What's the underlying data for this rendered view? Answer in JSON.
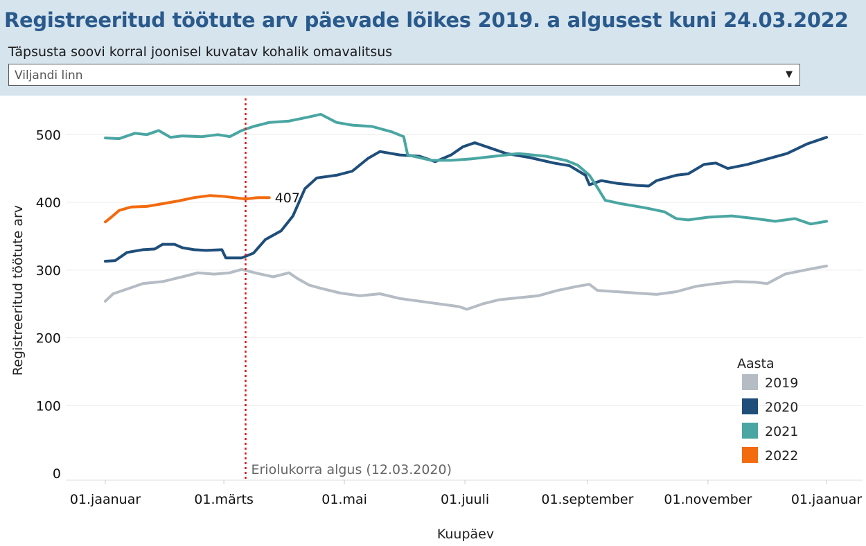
{
  "header": {
    "title": "Registreeritud töötute arv päevade lõikes 2019. a algusest kuni 24.03.2022",
    "filter_label": "Täpsusta soovi korral  joonisel kuvatav kohalik omavalitsus",
    "filter_value": "Viljandi linn",
    "filter_arrow_icon": "caret-down-icon"
  },
  "chart_data": {
    "type": "line",
    "title": "",
    "xlabel": "Kuupäev",
    "ylabel": "Registreeritud töötute arv",
    "ylim": [
      0,
      560
    ],
    "yticks": [
      0,
      100,
      200,
      300,
      400,
      500
    ],
    "x_is_day_of_year": true,
    "xlim": [
      1,
      366
    ],
    "x_ticks": [
      {
        "label": "01.jaanuar",
        "day": 1
      },
      {
        "label": "01.märts",
        "day": 61
      },
      {
        "label": "01.mai",
        "day": 122
      },
      {
        "label": "01.juuli",
        "day": 183
      },
      {
        "label": "01.september",
        "day": 245
      },
      {
        "label": "01.november",
        "day": 306
      },
      {
        "label": "01.jaanuar",
        "day": 366
      }
    ],
    "grid": "horizontal",
    "legend": {
      "title": "Aasta",
      "position": "bottom-right"
    },
    "annotations": {
      "vline": {
        "day": 72,
        "label": "Eriolukorra algus (12.03.2020)",
        "color": "#e0151a"
      },
      "end_label": {
        "series": "2022",
        "day": 84,
        "value": 407,
        "text": "407"
      }
    },
    "series": [
      {
        "name": "2019",
        "color": "#b5bcc4",
        "points": [
          [
            1,
            254
          ],
          [
            5,
            265
          ],
          [
            12,
            272
          ],
          [
            20,
            280
          ],
          [
            30,
            283
          ],
          [
            40,
            290
          ],
          [
            48,
            296
          ],
          [
            56,
            294
          ],
          [
            64,
            296
          ],
          [
            70,
            301
          ],
          [
            78,
            295
          ],
          [
            86,
            290
          ],
          [
            94,
            296
          ],
          [
            98,
            288
          ],
          [
            104,
            278
          ],
          [
            110,
            273
          ],
          [
            120,
            266
          ],
          [
            130,
            262
          ],
          [
            140,
            265
          ],
          [
            150,
            258
          ],
          [
            160,
            254
          ],
          [
            170,
            250
          ],
          [
            180,
            246
          ],
          [
            184,
            242
          ],
          [
            192,
            250
          ],
          [
            200,
            256
          ],
          [
            210,
            259
          ],
          [
            220,
            262
          ],
          [
            230,
            270
          ],
          [
            240,
            276
          ],
          [
            246,
            279
          ],
          [
            250,
            270
          ],
          [
            260,
            268
          ],
          [
            270,
            266
          ],
          [
            280,
            264
          ],
          [
            290,
            268
          ],
          [
            300,
            276
          ],
          [
            310,
            280
          ],
          [
            320,
            283
          ],
          [
            330,
            282
          ],
          [
            336,
            280
          ],
          [
            345,
            294
          ],
          [
            355,
            300
          ],
          [
            366,
            306
          ]
        ]
      },
      {
        "name": "2020",
        "color": "#1f4e7b",
        "points": [
          [
            1,
            313
          ],
          [
            6,
            314
          ],
          [
            12,
            326
          ],
          [
            20,
            330
          ],
          [
            26,
            331
          ],
          [
            30,
            338
          ],
          [
            36,
            338
          ],
          [
            40,
            333
          ],
          [
            46,
            330
          ],
          [
            52,
            329
          ],
          [
            60,
            330
          ],
          [
            62,
            318
          ],
          [
            70,
            318
          ],
          [
            76,
            325
          ],
          [
            82,
            345
          ],
          [
            90,
            358
          ],
          [
            96,
            380
          ],
          [
            102,
            420
          ],
          [
            108,
            436
          ],
          [
            118,
            440
          ],
          [
            126,
            446
          ],
          [
            134,
            465
          ],
          [
            140,
            475
          ],
          [
            150,
            470
          ],
          [
            160,
            468
          ],
          [
            168,
            460
          ],
          [
            176,
            470
          ],
          [
            182,
            482
          ],
          [
            188,
            488
          ],
          [
            196,
            480
          ],
          [
            204,
            472
          ],
          [
            216,
            466
          ],
          [
            228,
            458
          ],
          [
            236,
            454
          ],
          [
            244,
            440
          ],
          [
            246,
            426
          ],
          [
            252,
            432
          ],
          [
            260,
            428
          ],
          [
            270,
            425
          ],
          [
            276,
            424
          ],
          [
            280,
            432
          ],
          [
            290,
            440
          ],
          [
            296,
            442
          ],
          [
            304,
            456
          ],
          [
            310,
            458
          ],
          [
            316,
            450
          ],
          [
            326,
            456
          ],
          [
            336,
            464
          ],
          [
            346,
            472
          ],
          [
            356,
            486
          ],
          [
            366,
            496
          ]
        ]
      },
      {
        "name": "2021",
        "color": "#4aa6a2",
        "points": [
          [
            1,
            495
          ],
          [
            8,
            494
          ],
          [
            16,
            502
          ],
          [
            22,
            500
          ],
          [
            28,
            506
          ],
          [
            34,
            496
          ],
          [
            40,
            498
          ],
          [
            50,
            497
          ],
          [
            58,
            500
          ],
          [
            64,
            497
          ],
          [
            70,
            506
          ],
          [
            76,
            512
          ],
          [
            84,
            518
          ],
          [
            94,
            520
          ],
          [
            104,
            526
          ],
          [
            110,
            530
          ],
          [
            118,
            518
          ],
          [
            126,
            514
          ],
          [
            136,
            512
          ],
          [
            146,
            504
          ],
          [
            152,
            497
          ],
          [
            154,
            470
          ],
          [
            166,
            462
          ],
          [
            176,
            462
          ],
          [
            186,
            464
          ],
          [
            198,
            468
          ],
          [
            210,
            472
          ],
          [
            224,
            468
          ],
          [
            234,
            462
          ],
          [
            240,
            455
          ],
          [
            246,
            440
          ],
          [
            250,
            422
          ],
          [
            254,
            403
          ],
          [
            262,
            398
          ],
          [
            274,
            392
          ],
          [
            284,
            386
          ],
          [
            290,
            376
          ],
          [
            296,
            374
          ],
          [
            306,
            378
          ],
          [
            318,
            380
          ],
          [
            330,
            376
          ],
          [
            340,
            372
          ],
          [
            350,
            376
          ],
          [
            358,
            368
          ],
          [
            366,
            372
          ]
        ]
      },
      {
        "name": "2022",
        "color": "#f26b0f",
        "points": [
          [
            1,
            371
          ],
          [
            4,
            378
          ],
          [
            8,
            388
          ],
          [
            14,
            393
          ],
          [
            22,
            394
          ],
          [
            30,
            398
          ],
          [
            38,
            402
          ],
          [
            46,
            407
          ],
          [
            54,
            410
          ],
          [
            60,
            409
          ],
          [
            66,
            407
          ],
          [
            72,
            405
          ],
          [
            78,
            407
          ],
          [
            84,
            407
          ]
        ]
      }
    ]
  }
}
